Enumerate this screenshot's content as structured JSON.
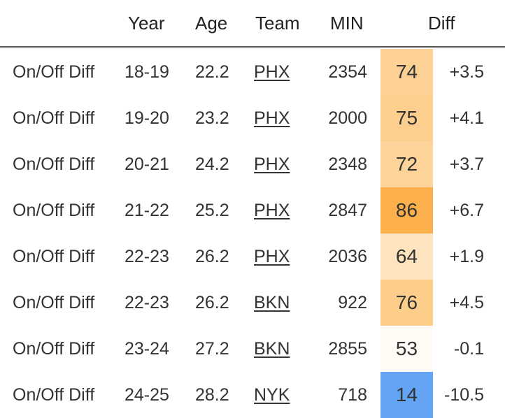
{
  "header": {
    "year": "Year",
    "age": "Age",
    "team": "Team",
    "min": "MIN",
    "diff": "Diff"
  },
  "rows": [
    {
      "label": "On/Off Diff",
      "year": "18-19",
      "age": "22.2",
      "team": "PHX",
      "min": "2354",
      "pct": "74",
      "diff": "+3.5",
      "color": "#fdd193"
    },
    {
      "label": "On/Off Diff",
      "year": "19-20",
      "age": "23.2",
      "team": "PHX",
      "min": "2000",
      "pct": "75",
      "diff": "+4.1",
      "color": "#fdcf8e"
    },
    {
      "label": "On/Off Diff",
      "year": "20-21",
      "age": "24.2",
      "team": "PHX",
      "min": "2348",
      "pct": "72",
      "diff": "+3.7",
      "color": "#fed49a"
    },
    {
      "label": "On/Off Diff",
      "year": "21-22",
      "age": "25.2",
      "team": "PHX",
      "min": "2847",
      "pct": "86",
      "diff": "+6.7",
      "color": "#fbb04c"
    },
    {
      "label": "On/Off Diff",
      "year": "22-23",
      "age": "26.2",
      "team": "PHX",
      "min": "2036",
      "pct": "64",
      "diff": "+1.9",
      "color": "#fee3bf"
    },
    {
      "label": "On/Off Diff",
      "year": "22-23",
      "age": "26.2",
      "team": "BKN",
      "min": "922",
      "pct": "76",
      "diff": "+4.5",
      "color": "#fdcd8a"
    },
    {
      "label": "On/Off Diff",
      "year": "23-24",
      "age": "27.2",
      "team": "BKN",
      "min": "2855",
      "pct": "53",
      "diff": "-0.1",
      "color": "#fffaf4"
    },
    {
      "label": "On/Off Diff",
      "year": "24-25",
      "age": "28.2",
      "team": "NYK",
      "min": "718",
      "pct": "14",
      "diff": "-10.5",
      "color": "#63a4f4"
    }
  ]
}
